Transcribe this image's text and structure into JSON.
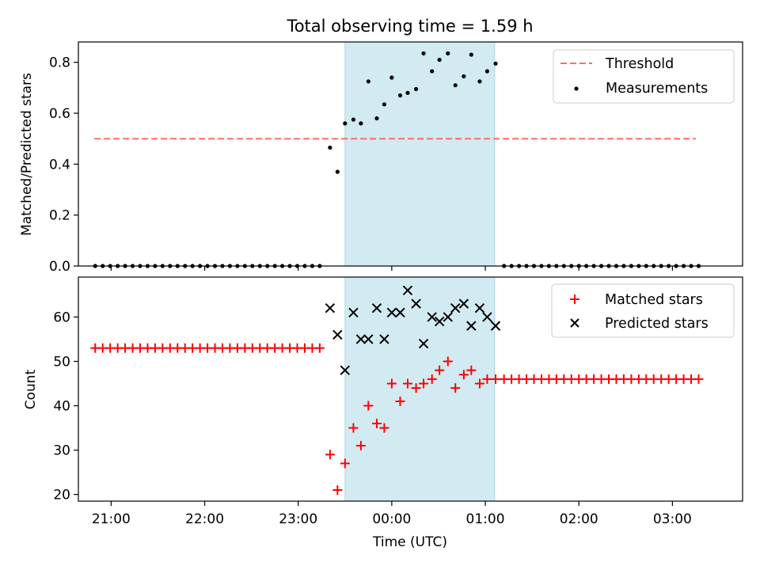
{
  "figure": {
    "title": "Total observing time = 1.59 h",
    "colors": {
      "threshold": "#ff6b6b",
      "measurements": "#000000",
      "matched": "#ff0000",
      "predicted": "#000000",
      "span": "#add8e6"
    }
  },
  "chart_data": [
    {
      "type": "scatter",
      "panel": "top",
      "title": "Total observing time = 1.59 h",
      "xlabel": "",
      "ylabel": "Matched/Predicted stars",
      "xlim": [
        -3.35,
        3.75
      ],
      "ylim": [
        0.0,
        0.88
      ],
      "yticks": [
        0.0,
        0.2,
        0.4,
        0.6,
        0.8
      ],
      "ytick_labels": [
        "0.0",
        "0.2",
        "0.4",
        "0.6",
        "0.8"
      ],
      "x_unit": "hours relative to 00:00 UTC",
      "shaded_span": [
        -0.5,
        1.1
      ],
      "legend": "top-right",
      "legend_labels": [
        "Threshold",
        "Measurements"
      ],
      "threshold": {
        "name": "Threshold",
        "x": [
          -3.18,
          3.25
        ],
        "y": 0.5,
        "style": "dashed"
      },
      "series": [
        {
          "name": "Measurements",
          "x": [
            -3.17,
            -3.09,
            -3.01,
            -2.93,
            -2.85,
            -2.77,
            -2.69,
            -2.61,
            -2.53,
            -2.45,
            -2.37,
            -2.29,
            -2.21,
            -2.13,
            -2.05,
            -1.97,
            -1.89,
            -1.81,
            -1.73,
            -1.65,
            -1.57,
            -1.49,
            -1.41,
            -1.33,
            -1.25,
            -1.17,
            -1.09,
            -1.01,
            -0.93,
            -0.85,
            -0.77,
            -0.66,
            -0.58,
            -0.5,
            -0.41,
            -0.33,
            -0.25,
            -0.16,
            -0.08,
            0.0,
            0.09,
            0.17,
            0.26,
            0.34,
            0.43,
            0.51,
            0.6,
            0.68,
            0.77,
            0.85,
            0.94,
            1.02,
            1.11,
            1.2,
            1.28,
            1.36,
            1.44,
            1.52,
            1.6,
            1.68,
            1.76,
            1.84,
            1.92,
            2.0,
            2.08,
            2.16,
            2.24,
            2.32,
            2.4,
            2.48,
            2.56,
            2.64,
            2.72,
            2.8,
            2.88,
            2.96,
            3.04,
            3.12,
            3.2,
            3.28
          ],
          "y": [
            0,
            0,
            0,
            0,
            0,
            0,
            0,
            0,
            0,
            0,
            0,
            0,
            0,
            0,
            0,
            0,
            0,
            0,
            0,
            0,
            0,
            0,
            0,
            0,
            0,
            0,
            0,
            0,
            0,
            0,
            0,
            0.465,
            0.37,
            0.56,
            0.575,
            0.56,
            0.725,
            0.58,
            0.635,
            0.74,
            0.67,
            0.68,
            0.695,
            0.835,
            0.765,
            0.81,
            0.835,
            0.71,
            0.745,
            0.83,
            0.725,
            0.765,
            0.795,
            0,
            0,
            0,
            0,
            0,
            0,
            0,
            0,
            0,
            0,
            0,
            0,
            0,
            0,
            0,
            0,
            0,
            0,
            0,
            0,
            0,
            0,
            0,
            0,
            0,
            0,
            0
          ]
        }
      ]
    },
    {
      "type": "scatter",
      "panel": "bottom",
      "xlabel": "Time (UTC)",
      "ylabel": "Count",
      "xlim": [
        -3.35,
        3.75
      ],
      "ylim": [
        18.5,
        69
      ],
      "yticks": [
        20,
        30,
        40,
        50,
        60
      ],
      "ytick_labels": [
        "20",
        "30",
        "40",
        "50",
        "60"
      ],
      "xticks": [
        -3,
        -2,
        -1,
        0,
        1,
        2,
        3
      ],
      "xtick_labels": [
        "21:00",
        "22:00",
        "23:00",
        "00:00",
        "01:00",
        "02:00",
        "03:00"
      ],
      "x_unit": "hours relative to 00:00 UTC",
      "shaded_span": [
        -0.5,
        1.1
      ],
      "legend": "top-right",
      "legend_labels": [
        "Matched stars",
        "Predicted stars"
      ],
      "series": [
        {
          "name": "Matched stars",
          "marker": "+",
          "x": [
            -3.17,
            -3.09,
            -3.01,
            -2.93,
            -2.85,
            -2.77,
            -2.69,
            -2.61,
            -2.53,
            -2.45,
            -2.37,
            -2.29,
            -2.21,
            -2.13,
            -2.05,
            -1.97,
            -1.89,
            -1.81,
            -1.73,
            -1.65,
            -1.57,
            -1.49,
            -1.41,
            -1.33,
            -1.25,
            -1.17,
            -1.09,
            -1.01,
            -0.93,
            -0.85,
            -0.77,
            -0.66,
            -0.58,
            -0.5,
            -0.41,
            -0.33,
            -0.25,
            -0.16,
            -0.08,
            0.0,
            0.09,
            0.17,
            0.26,
            0.34,
            0.43,
            0.51,
            0.6,
            0.68,
            0.77,
            0.85,
            0.94,
            1.02,
            1.11,
            1.2,
            1.28,
            1.36,
            1.44,
            1.52,
            1.6,
            1.68,
            1.76,
            1.84,
            1.92,
            2.0,
            2.08,
            2.16,
            2.24,
            2.32,
            2.4,
            2.48,
            2.56,
            2.64,
            2.72,
            2.8,
            2.88,
            2.96,
            3.04,
            3.12,
            3.2,
            3.28
          ],
          "y": [
            53,
            53,
            53,
            53,
            53,
            53,
            53,
            53,
            53,
            53,
            53,
            53,
            53,
            53,
            53,
            53,
            53,
            53,
            53,
            53,
            53,
            53,
            53,
            53,
            53,
            53,
            53,
            53,
            53,
            53,
            53,
            29,
            21,
            27,
            35,
            31,
            40,
            36,
            35,
            45,
            41,
            45,
            44,
            45,
            46,
            48,
            50,
            44,
            47,
            48,
            45,
            46,
            46,
            46,
            46,
            46,
            46,
            46,
            46,
            46,
            46,
            46,
            46,
            46,
            46,
            46,
            46,
            46,
            46,
            46,
            46,
            46,
            46,
            46,
            46,
            46,
            46,
            46,
            46,
            46
          ]
        },
        {
          "name": "Predicted stars",
          "marker": "x",
          "x": [
            -0.66,
            -0.58,
            -0.5,
            -0.41,
            -0.33,
            -0.25,
            -0.16,
            -0.08,
            0.0,
            0.09,
            0.17,
            0.26,
            0.34,
            0.43,
            0.51,
            0.6,
            0.68,
            0.77,
            0.85,
            0.94,
            1.02,
            1.11
          ],
          "y": [
            62,
            56,
            48,
            61,
            55,
            55,
            62,
            55,
            61,
            61,
            66,
            63,
            54,
            60,
            59,
            60,
            62,
            63,
            58,
            62,
            60,
            58
          ]
        }
      ]
    }
  ]
}
